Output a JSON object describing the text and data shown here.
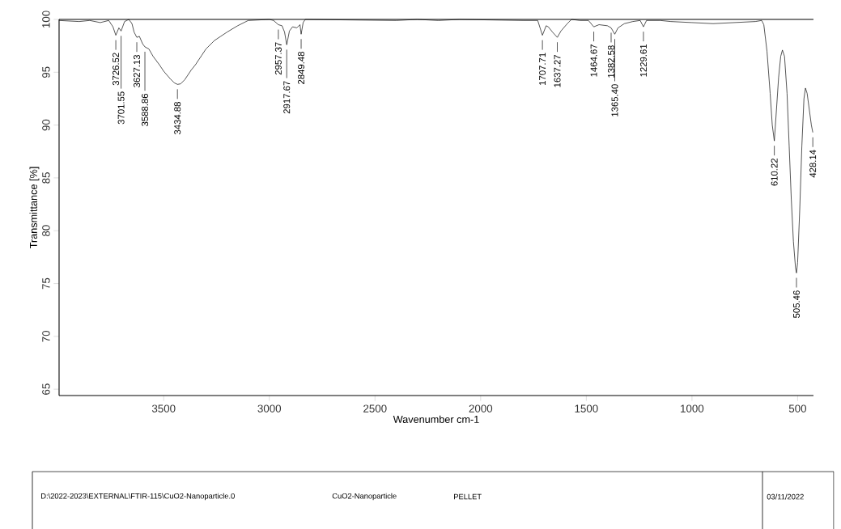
{
  "chart_data": {
    "type": "line",
    "xlabel": "Wavenumber cm-1",
    "ylabel": "Transmittance [%]",
    "color": "#000000",
    "xlim": [
      3995,
      425
    ],
    "ylim": [
      64.4,
      100
    ],
    "xticks": [
      3500,
      3000,
      2500,
      2000,
      1500,
      1000,
      500
    ],
    "yticks": [
      65,
      70,
      75,
      80,
      85,
      90,
      95,
      100
    ],
    "x": [
      3995,
      3900,
      3850,
      3800,
      3760,
      3740,
      3726.52,
      3712,
      3701.55,
      3685,
      3665,
      3650,
      3640,
      3627.13,
      3615,
      3600,
      3588.86,
      3570,
      3550,
      3520,
      3500,
      3470,
      3450,
      3434.88,
      3420,
      3400,
      3370,
      3350,
      3320,
      3300,
      3260,
      3230,
      3200,
      3150,
      3100,
      3000,
      2980,
      2957.37,
      2940,
      2928,
      2917.67,
      2905,
      2890,
      2870,
      2855,
      2849.48,
      2840,
      2830,
      2400,
      2300,
      2200,
      2100,
      1800,
      1730,
      1707.71,
      1690,
      1680,
      1660,
      1637.27,
      1620,
      1590,
      1570,
      1530,
      1490,
      1464.67,
      1440,
      1400,
      1382.58,
      1365.4,
      1350,
      1320,
      1280,
      1245,
      1229.61,
      1215,
      1150,
      1100,
      1000,
      900,
      800,
      700,
      670,
      660,
      645,
      630,
      620,
      610.22,
      600,
      590,
      580,
      572,
      562,
      550,
      540,
      530,
      520,
      510,
      505.46,
      500,
      490,
      480,
      470,
      463,
      455,
      445,
      435,
      428.14
    ],
    "values": [
      99.9,
      99.8,
      99.9,
      99.7,
      99.9,
      99.3,
      98.5,
      99.2,
      98.9,
      99.8,
      100,
      99.6,
      98.8,
      98.3,
      98.4,
      97.7,
      97.4,
      97.2,
      96.5,
      95.7,
      95.1,
      94.4,
      94.0,
      93.85,
      93.9,
      94.3,
      95.2,
      95.7,
      96.6,
      97.2,
      98.0,
      98.4,
      98.8,
      99.4,
      99.9,
      100,
      99.9,
      99.5,
      99.4,
      98.8,
      97.6,
      98.9,
      99.3,
      99.2,
      99.5,
      98.6,
      99.7,
      100,
      99.9,
      100,
      99.9,
      100,
      99.9,
      99.9,
      98.5,
      99.4,
      99.3,
      98.8,
      98.3,
      98.9,
      99.6,
      100,
      99.9,
      99.9,
      99.3,
      99.5,
      99.4,
      99.2,
      98.6,
      99.2,
      99.6,
      99.8,
      99.9,
      99.3,
      99.9,
      99.9,
      99.8,
      99.7,
      99.6,
      99.7,
      99.8,
      99.9,
      99.5,
      97.0,
      93.0,
      90.0,
      88.5,
      91.5,
      94.5,
      96.5,
      97.1,
      96.5,
      93.0,
      88.0,
      83.0,
      79.0,
      76.5,
      76.0,
      77.0,
      82.0,
      88.0,
      92.5,
      93.5,
      93.0,
      91.5,
      90.0,
      89.3
    ],
    "annotations": [
      {
        "text": "3726.52",
        "x": 3726.52,
        "y": 98.5
      },
      {
        "text": "3701.55",
        "x": 3701.55,
        "y": 98.9
      },
      {
        "text": "3627.13",
        "x": 3627.13,
        "y": 98.3
      },
      {
        "text": "3588.86",
        "x": 3588.86,
        "y": 97.4
      },
      {
        "text": "3434.88",
        "x": 3434.88,
        "y": 93.85
      },
      {
        "text": "2957.37",
        "x": 2957.37,
        "y": 99.5
      },
      {
        "text": "2917.67",
        "x": 2917.67,
        "y": 97.6
      },
      {
        "text": "2849.48",
        "x": 2849.48,
        "y": 98.6
      },
      {
        "text": "1707.71",
        "x": 1707.71,
        "y": 98.5
      },
      {
        "text": "1637.27",
        "x": 1637.27,
        "y": 98.3
      },
      {
        "text": "1464.67",
        "x": 1464.67,
        "y": 99.3
      },
      {
        "text": "1382.58",
        "x": 1382.58,
        "y": 99.2
      },
      {
        "text": "1365.40",
        "x": 1365.4,
        "y": 98.6
      },
      {
        "text": "1229.61",
        "x": 1229.61,
        "y": 99.3
      },
      {
        "text": "610.22",
        "x": 610.22,
        "y": 88.5
      },
      {
        "text": "505.46",
        "x": 505.46,
        "y": 76.0
      },
      {
        "text": "428.14",
        "x": 428.14,
        "y": 89.3
      },
      "D:\\2022-2023\\EXTERNAL\\FTIR-115\\CuO2-Nanoparticle.0",
      "CuO2-Nanoparticle",
      "PELLET",
      "03/11/2022"
    ]
  }
}
